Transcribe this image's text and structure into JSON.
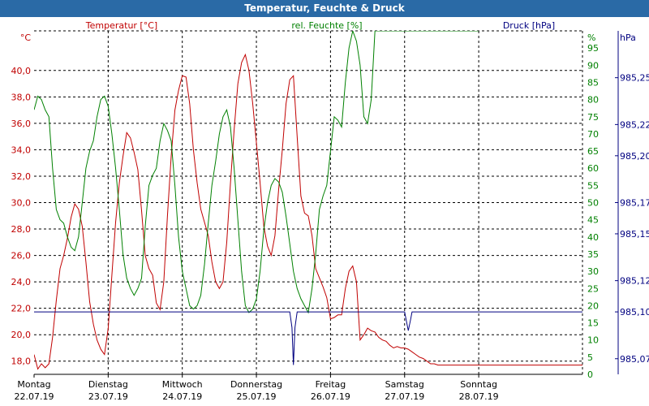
{
  "window": {
    "title": "Temperatur, Feuchte & Druck"
  },
  "chart_data": {
    "type": "line",
    "title": "Temperatur, Feuchte & Druck",
    "x_ticks": [
      {
        "day": "Montag",
        "date": "22.07.19"
      },
      {
        "day": "Dienstag",
        "date": "23.07.19"
      },
      {
        "day": "Mittwoch",
        "date": "24.07.19"
      },
      {
        "day": "Donnerstag",
        "date": "25.07.19"
      },
      {
        "day": "Freitag",
        "date": "26.07.19"
      },
      {
        "day": "Samstag",
        "date": "27.07.19"
      },
      {
        "day": "Sonntag",
        "date": "28.07.19"
      }
    ],
    "xlim": [
      0,
      7.4
    ],
    "axes": {
      "temperature": {
        "label": "Temperatur [°C]",
        "unit": "°C",
        "color": "#c00000",
        "range": [
          17,
          43
        ],
        "ticks": [
          "18,0",
          "20,0",
          "22,0",
          "24,0",
          "26,0",
          "28,0",
          "30,0",
          "32,0",
          "34,0",
          "36,0",
          "38,0",
          "40,0"
        ]
      },
      "humidity": {
        "label": "rel. Feuchte [%]",
        "unit": "%",
        "color": "#008000",
        "range": [
          0,
          100
        ],
        "ticks": [
          "0",
          "5",
          "10",
          "15",
          "20",
          "25",
          "30",
          "35",
          "40",
          "45",
          "50",
          "55",
          "60",
          "65",
          "70",
          "75",
          "80",
          "85",
          "90",
          "95"
        ]
      },
      "pressure": {
        "label": "Druck [hPa]",
        "unit": "hPa",
        "color": "#000080",
        "range": [
          985.06,
          985.28
        ],
        "ticks": [
          "985,07",
          "985,10",
          "985,12",
          "985,15",
          "985,17",
          "985,20",
          "985,22",
          "985,25"
        ]
      }
    },
    "grid": true,
    "series": [
      {
        "name": "Temperatur [°C]",
        "axis": "temperature",
        "color": "#c00000",
        "x": [
          0,
          0.05,
          0.1,
          0.15,
          0.2,
          0.25,
          0.3,
          0.35,
          0.4,
          0.45,
          0.5,
          0.55,
          0.6,
          0.65,
          0.7,
          0.75,
          0.8,
          0.85,
          0.9,
          0.95,
          1.0,
          1.05,
          1.1,
          1.15,
          1.2,
          1.25,
          1.3,
          1.35,
          1.4,
          1.45,
          1.5,
          1.55,
          1.6,
          1.65,
          1.7,
          1.75,
          1.8,
          1.85,
          1.9,
          1.95,
          2.0,
          2.05,
          2.1,
          2.15,
          2.2,
          2.25,
          2.3,
          2.35,
          2.4,
          2.45,
          2.5,
          2.55,
          2.6,
          2.65,
          2.7,
          2.75,
          2.8,
          2.85,
          2.9,
          2.95,
          3.0,
          3.05,
          3.1,
          3.15,
          3.2,
          3.25,
          3.3,
          3.35,
          3.4,
          3.45,
          3.5,
          3.55,
          3.6,
          3.65,
          3.7,
          3.75,
          3.8,
          3.85,
          3.9,
          3.95,
          4.0,
          4.05,
          4.1,
          4.15,
          4.2,
          4.25,
          4.3,
          4.35,
          4.4,
          4.45,
          4.5,
          4.55,
          4.6,
          4.65,
          4.7,
          4.75,
          4.8,
          4.85,
          4.9,
          4.95,
          5.0,
          5.05,
          5.1,
          5.15,
          5.2,
          5.25,
          5.3,
          5.35,
          5.4,
          5.45,
          5.5,
          5.55,
          5.6,
          5.65,
          5.7,
          5.75,
          5.8,
          5.85,
          5.9,
          5.95,
          6.0,
          6.05,
          6.1,
          6.15,
          6.2,
          6.25,
          6.3,
          6.35,
          6.4,
          6.45,
          6.5,
          6.55,
          6.6,
          6.65,
          6.7,
          6.75,
          6.8,
          6.85,
          6.9,
          6.95,
          7.0,
          7.05,
          7.1,
          7.15,
          7.2,
          7.25,
          7.3,
          7.35,
          7.4
        ],
        "values": [
          18.5,
          17.4,
          17.8,
          17.5,
          17.8,
          19.8,
          22.6,
          25.0,
          26.0,
          27.3,
          28.9,
          29.9,
          29.5,
          28.2,
          25.5,
          22.5,
          20.8,
          19.6,
          18.9,
          18.5,
          20.5,
          24.5,
          28.5,
          31.5,
          33.5,
          35.3,
          34.9,
          33.8,
          32.5,
          29.4,
          26.0,
          25.0,
          24.5,
          22.4,
          21.9,
          24.0,
          29.0,
          33.5,
          37.0,
          38.5,
          39.6,
          39.5,
          37.5,
          34.0,
          31.5,
          29.5,
          28.5,
          27.5,
          25.5,
          24.0,
          23.5,
          24.0,
          27.0,
          31.5,
          35.5,
          39.0,
          40.6,
          41.2,
          40.0,
          37.5,
          34.5,
          31.5,
          28.2,
          26.7,
          26.0,
          27.5,
          31.0,
          34.0,
          37.5,
          39.3,
          39.6,
          35.0,
          30.5,
          29.2,
          29.0,
          27.5,
          25.0,
          24.3,
          23.6,
          22.8,
          21.2,
          21.3,
          21.5,
          21.5,
          23.5,
          24.8,
          25.2,
          24.0,
          19.6,
          20.0,
          20.5,
          20.3,
          20.2,
          19.8,
          19.6,
          19.5,
          19.2,
          19.0,
          19.1,
          19.0,
          19.0,
          18.9,
          18.7,
          18.5,
          18.3,
          18.2,
          18.0,
          17.8,
          17.8,
          17.7,
          17.7,
          17.7,
          17.7,
          17.7,
          17.7,
          17.7,
          17.7,
          17.7,
          17.7,
          17.7,
          17.7,
          17.7,
          17.7,
          17.7,
          17.7,
          17.7,
          17.7,
          17.7,
          17.7,
          17.7,
          17.7,
          17.7,
          17.7,
          17.7,
          17.7,
          17.7,
          17.7,
          17.7,
          17.7,
          17.7,
          17.7,
          17.7,
          17.7,
          17.7,
          17.7,
          17.7,
          17.7,
          17.7,
          17.7
        ]
      },
      {
        "name": "rel. Feuchte [%]",
        "axis": "humidity",
        "color": "#008000",
        "x": [
          0,
          0.05,
          0.1,
          0.15,
          0.2,
          0.25,
          0.3,
          0.35,
          0.4,
          0.45,
          0.5,
          0.55,
          0.6,
          0.65,
          0.7,
          0.75,
          0.8,
          0.85,
          0.9,
          0.95,
          1.0,
          1.05,
          1.1,
          1.15,
          1.2,
          1.25,
          1.3,
          1.35,
          1.4,
          1.45,
          1.5,
          1.55,
          1.6,
          1.65,
          1.7,
          1.75,
          1.8,
          1.85,
          1.9,
          1.95,
          2.0,
          2.05,
          2.1,
          2.15,
          2.2,
          2.25,
          2.3,
          2.35,
          2.4,
          2.45,
          2.5,
          2.55,
          2.6,
          2.65,
          2.7,
          2.75,
          2.8,
          2.85,
          2.9,
          2.95,
          3.0,
          3.05,
          3.1,
          3.15,
          3.2,
          3.25,
          3.3,
          3.35,
          3.4,
          3.45,
          3.5,
          3.55,
          3.6,
          3.65,
          3.7,
          3.75,
          3.8,
          3.85,
          3.9,
          3.95,
          4.0,
          4.05,
          4.1,
          4.15,
          4.2,
          4.25,
          4.3,
          4.35,
          4.4,
          4.45,
          4.5,
          4.55,
          4.6,
          4.65,
          4.7,
          4.75,
          4.8,
          4.85,
          4.9,
          4.95,
          5.0,
          5.05,
          5.1,
          5.15,
          5.2,
          5.25,
          5.3,
          5.35,
          5.4,
          5.45,
          5.5,
          5.55,
          5.6,
          5.65,
          5.7,
          5.75,
          5.8,
          5.85,
          5.9,
          5.95,
          6.0
        ],
        "values": [
          77,
          81,
          80,
          77,
          75,
          60,
          48,
          45,
          44,
          40,
          37,
          36,
          40,
          50,
          60,
          65,
          68,
          75,
          80,
          81,
          78,
          70,
          60,
          48,
          35,
          28,
          25,
          23,
          25,
          28,
          43,
          55,
          58,
          60,
          68,
          73,
          71,
          68,
          55,
          40,
          30,
          25,
          20,
          19,
          20,
          23,
          32,
          44,
          55,
          62,
          70,
          75,
          77,
          72,
          60,
          45,
          30,
          20,
          18,
          19,
          22,
          30,
          42,
          50,
          55,
          57,
          56,
          53,
          46,
          38,
          30,
          25,
          22,
          20,
          18,
          25,
          35,
          48,
          52,
          55,
          65,
          75,
          74,
          72,
          85,
          95,
          100,
          97,
          90,
          75,
          73,
          80,
          100,
          100,
          100,
          100,
          100,
          100,
          100,
          100,
          100,
          100,
          100,
          100,
          100,
          100,
          100,
          100,
          100,
          100,
          100,
          100,
          100,
          100,
          100,
          100,
          100,
          100,
          100,
          100,
          100
        ]
      },
      {
        "name": "Druck [hPa]",
        "axis": "pressure",
        "color": "#000080",
        "x": [
          0,
          3.4,
          3.45,
          3.48,
          3.5,
          3.52,
          3.55,
          3.6,
          5.0,
          5.02,
          5.05,
          5.08,
          5.1,
          5.5,
          7.4
        ],
        "values": [
          985.1,
          985.1,
          985.1,
          985.09,
          985.066,
          985.09,
          985.1,
          985.1,
          985.1,
          985.095,
          985.088,
          985.095,
          985.1,
          985.1,
          985.1
        ]
      }
    ]
  }
}
